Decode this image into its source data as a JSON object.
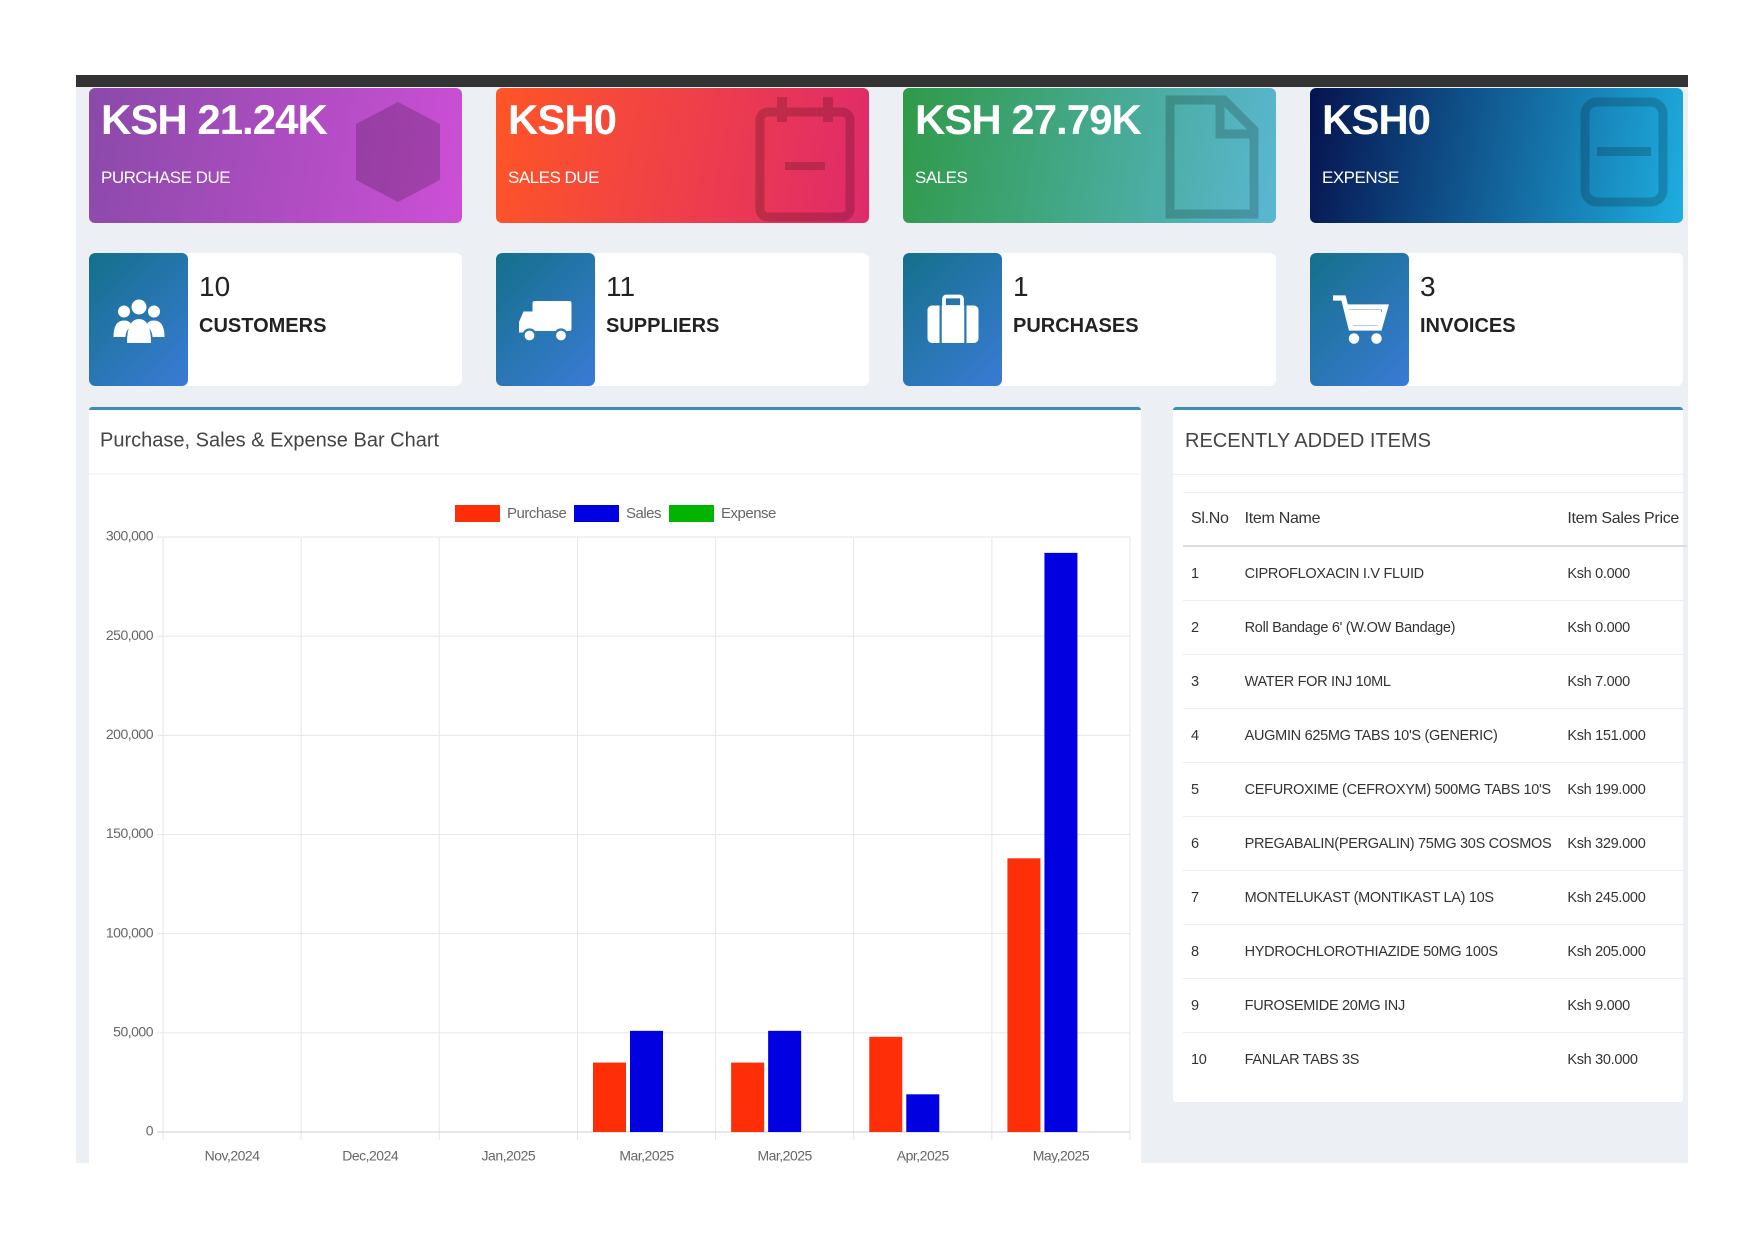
{
  "stat_cards": [
    {
      "value": "KSH 21.24K",
      "label": "PURCHASE DUE"
    },
    {
      "value": "KSH0",
      "label": "SALES DUE"
    },
    {
      "value": "KSH 27.79K",
      "label": "SALES"
    },
    {
      "value": "KSH0",
      "label": "EXPENSE"
    }
  ],
  "count_cards": [
    {
      "value": 10,
      "label": "CUSTOMERS"
    },
    {
      "value": 11,
      "label": "SUPPLIERS"
    },
    {
      "value": 1,
      "label": "PURCHASES"
    },
    {
      "value": 3,
      "label": "INVOICES"
    }
  ],
  "chart_data": {
    "type": "bar",
    "title": "Purchase, Sales & Expense Bar Chart",
    "categories": [
      "Nov,2024",
      "Dec,2024",
      "Jan,2025",
      "Mar,2025",
      "Mar,2025",
      "Apr,2025",
      "May,2025"
    ],
    "series": [
      {
        "name": "Purchase",
        "color": "#fe2e08",
        "values": [
          0,
          0,
          0,
          35000,
          35000,
          48000,
          138000
        ]
      },
      {
        "name": "Sales",
        "color": "#0000e0",
        "values": [
          0,
          0,
          0,
          51000,
          51000,
          19000,
          292000
        ]
      },
      {
        "name": "Expense",
        "color": "#00b400",
        "values": [
          0,
          0,
          0,
          0,
          0,
          0,
          0
        ]
      }
    ],
    "ylim": [
      0,
      300000
    ],
    "yticks": [
      0,
      {
        "value": 50000,
        "label": "50,000"
      },
      {
        "value": 100000,
        "label": "100,000"
      },
      {
        "value": 150000,
        "label": "150,000"
      },
      {
        "value": 200000,
        "label": "200,000"
      },
      {
        "value": 250000,
        "label": "250,000"
      },
      {
        "value": 300000,
        "label": "300,000"
      }
    ],
    "grid": true,
    "legend": "top"
  },
  "recent_items": {
    "title": "RECENTLY ADDED ITEMS",
    "columns": [
      "Sl.No",
      "Item Name",
      "Item Sales Price"
    ],
    "rows": [
      [
        1,
        "CIPROFLOXACIN I.V FLUID",
        "Ksh 0.000"
      ],
      [
        2,
        "Roll Bandage 6' (W.OW Bandage)",
        "Ksh 0.000"
      ],
      [
        3,
        "WATER FOR INJ 10ML",
        "Ksh 7.000"
      ],
      [
        4,
        "AUGMIN 625MG TABS 10'S (GENERIC)",
        "Ksh 151.000"
      ],
      [
        5,
        "CEFUROXIME (CEFROXYM) 500MG TABS 10'S",
        "Ksh 199.000"
      ],
      [
        6,
        "PREGABALIN(PERGALIN) 75MG 30S COSMOS",
        "Ksh 329.000"
      ],
      [
        7,
        "MONTELUKAST (MONTIKAST LA) 10S",
        "Ksh 245.000"
      ],
      [
        8,
        "HYDROCHLOROTHIAZIDE 50MG 100S",
        "Ksh 205.000"
      ],
      [
        9,
        "FUROSEMIDE 20MG INJ",
        "Ksh 9.000"
      ],
      [
        10,
        "FANLAR TABS 3S",
        "Ksh 30.000"
      ]
    ]
  }
}
